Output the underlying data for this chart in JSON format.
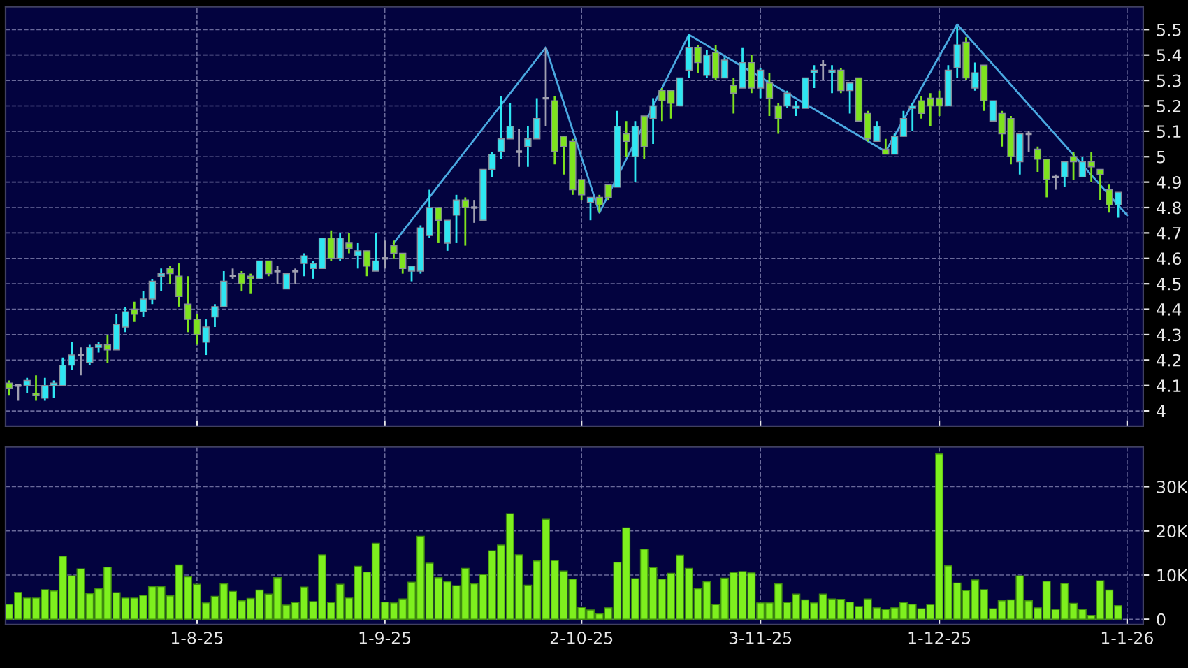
{
  "chart_data": [
    {
      "type": "candlestick",
      "colors": [
        "#7ee31e",
        "#a0a0b0",
        "#2ee6f2",
        "#7ee31e",
        "#2ee6f2",
        "#2ee6f2",
        "#2ee6f2",
        "#2ee6f2",
        "#a0a0b0",
        "#2ee6f2",
        "#2ee6f2",
        "#7ee31e",
        "#2ee6f2",
        "#2ee6f2",
        "#7ee31e",
        "#2ee6f2",
        "#2ee6f2",
        "#2ee6f2",
        "#7ee31e",
        "#7ee31e",
        "#7ee31e",
        "#7ee31e",
        "#2ee6f2",
        "#2ee6f2",
        "#2ee6f2",
        "#a0a0b0",
        "#7ee31e",
        "#7ee31e",
        "#2ee6f2",
        "#7ee31e",
        "#a0a0b0",
        "#2ee6f2",
        "#a0a0b0",
        "#2ee6f2",
        "#2ee6f2",
        "#2ee6f2",
        "#7ee31e",
        "#2ee6f2",
        "#7ee31e",
        "#2ee6f2",
        "#7ee31e",
        "#2ee6f2",
        "#a0a0b0",
        "#7ee31e",
        "#7ee31e",
        "#2ee6f2",
        "#2ee6f2",
        "#2ee6f2",
        "#7ee31e",
        "#2ee6f2",
        "#2ee6f2",
        "#7ee31e",
        "#a0a0b0",
        "#2ee6f2",
        "#2ee6f2",
        "#2ee6f2",
        "#2ee6f2",
        "#a0a0b0",
        "#2ee6f2",
        "#2ee6f2",
        "#a0a0b0",
        "#7ee31e",
        "#7ee31e",
        "#7ee31e",
        "#7ee31e",
        "#2ee6f2",
        "#7ee31e",
        "#7ee31e",
        "#2ee6f2",
        "#7ee31e",
        "#2ee6f2",
        "#7ee31e",
        "#2ee6f2",
        "#7ee31e",
        "#7ee31e",
        "#2ee6f2",
        "#2ee6f2",
        "#7ee31e",
        "#2ee6f2",
        "#7ee31e",
        "#2ee6f2",
        "#7ee31e",
        "#2ee6f2",
        "#7ee31e",
        "#2ee6f2",
        "#7ee31e",
        "#7ee31e",
        "#2ee6f2",
        "#2ee6f2",
        "#2ee6f2",
        "#2ee6f2",
        "#a0a0b0",
        "#2ee6f2",
        "#7ee31e",
        "#2ee6f2",
        "#7ee31e",
        "#7ee31e",
        "#2ee6f2",
        "#7ee31e",
        "#2ee6f2",
        "#2ee6f2",
        "#2ee6f2",
        "#7ee31e",
        "#7ee31e",
        "#7ee31e",
        "#2ee6f2",
        "#2ee6f2",
        "#7ee31e",
        "#2ee6f2",
        "#7ee31e",
        "#2ee6f2",
        "#7ee31e",
        "#7ee31e",
        "#2ee6f2",
        "#a0a0b0",
        "#7ee31e",
        "#7ee31e",
        "#a0a0b0",
        "#2ee6f2",
        "#7ee31e",
        "#2ee6f2",
        "#7ee31e",
        "#7ee31e",
        "#7ee31e",
        "#2ee6f2",
        null
      ],
      "categories": [
        null,
        null,
        null,
        null,
        null,
        null,
        null,
        null,
        null,
        null,
        null,
        null,
        null,
        null,
        null,
        null,
        null,
        null,
        null,
        null,
        null,
        null,
        null,
        null,
        null,
        null,
        null,
        null,
        null,
        null,
        null,
        null,
        null,
        null,
        null,
        null,
        null,
        null,
        null,
        null,
        null,
        null,
        null,
        null,
        null,
        null,
        null,
        null,
        null,
        null,
        null,
        null,
        null,
        null,
        null,
        null,
        null,
        null,
        null,
        null,
        null,
        null,
        null,
        null,
        null,
        null,
        null,
        null,
        null,
        null,
        null,
        null,
        null,
        null,
        null,
        null,
        null,
        null,
        null,
        null,
        null,
        null,
        null,
        null,
        null,
        null,
        null,
        null,
        null,
        null,
        null,
        null,
        null,
        null,
        null,
        null,
        null,
        null,
        null,
        null,
        null,
        null,
        null,
        null,
        null,
        null,
        null,
        null,
        null,
        null,
        null,
        null,
        null,
        null,
        null,
        null,
        null,
        null,
        null,
        null,
        null,
        null,
        null,
        null,
        null,
        null
      ],
      "ohlc": [
        [
          4.11,
          4.12,
          4.06,
          4.09
        ],
        [
          4.1,
          4.1,
          4.04,
          4.1
        ],
        [
          4.1,
          4.13,
          4.07,
          4.12
        ],
        [
          4.07,
          4.14,
          4.04,
          4.06
        ],
        [
          4.05,
          4.13,
          4.04,
          4.1
        ],
        [
          4.1,
          4.12,
          4.05,
          4.11
        ],
        [
          4.1,
          4.21,
          4.1,
          4.18
        ],
        [
          4.18,
          4.27,
          4.16,
          4.22
        ],
        [
          4.22,
          4.25,
          4.14,
          4.22
        ],
        [
          4.19,
          4.26,
          4.18,
          4.25
        ],
        [
          4.25,
          4.27,
          4.23,
          4.26
        ],
        [
          4.26,
          4.3,
          4.19,
          4.24
        ],
        [
          4.24,
          4.38,
          4.24,
          4.34
        ],
        [
          4.33,
          4.41,
          4.31,
          4.39
        ],
        [
          4.4,
          4.43,
          4.35,
          4.38
        ],
        [
          4.39,
          4.47,
          4.37,
          4.44
        ],
        [
          4.44,
          4.52,
          4.42,
          4.51
        ],
        [
          4.53,
          4.56,
          4.47,
          4.54
        ],
        [
          4.56,
          4.57,
          4.5,
          4.54
        ],
        [
          4.53,
          4.58,
          4.41,
          4.45
        ],
        [
          4.42,
          4.53,
          4.31,
          4.36
        ],
        [
          4.36,
          4.38,
          4.26,
          4.3
        ],
        [
          4.27,
          4.36,
          4.22,
          4.33
        ],
        [
          4.37,
          4.42,
          4.33,
          4.41
        ],
        [
          4.41,
          4.55,
          4.41,
          4.51
        ],
        [
          4.53,
          4.56,
          4.52,
          4.53
        ],
        [
          4.54,
          4.55,
          4.47,
          4.5
        ],
        [
          4.53,
          4.54,
          4.46,
          4.52
        ],
        [
          4.52,
          4.59,
          4.52,
          4.59
        ],
        [
          4.59,
          4.59,
          4.53,
          4.54
        ],
        [
          4.55,
          4.57,
          4.5,
          4.55
        ],
        [
          4.48,
          4.54,
          4.48,
          4.54
        ],
        [
          4.55,
          4.56,
          4.5,
          4.55
        ],
        [
          4.58,
          4.62,
          4.53,
          4.61
        ],
        [
          4.56,
          4.59,
          4.52,
          4.58
        ],
        [
          4.56,
          4.68,
          4.56,
          4.68
        ],
        [
          4.68,
          4.71,
          4.59,
          4.6
        ],
        [
          4.6,
          4.7,
          4.59,
          4.68
        ],
        [
          4.66,
          4.7,
          4.62,
          4.64
        ],
        [
          4.61,
          4.66,
          4.56,
          4.63
        ],
        [
          4.63,
          4.63,
          4.53,
          4.57
        ],
        [
          4.55,
          4.7,
          4.55,
          4.59
        ],
        [
          4.6,
          4.67,
          4.56,
          4.6
        ],
        [
          4.65,
          4.67,
          4.6,
          4.62
        ],
        [
          4.62,
          4.62,
          4.54,
          4.56
        ],
        [
          4.55,
          4.57,
          4.51,
          4.57
        ],
        [
          4.55,
          4.73,
          4.54,
          4.72
        ],
        [
          4.69,
          4.87,
          4.68,
          4.8
        ],
        [
          4.8,
          4.8,
          4.66,
          4.75
        ],
        [
          4.66,
          4.75,
          4.63,
          4.75
        ],
        [
          4.77,
          4.85,
          4.66,
          4.83
        ],
        [
          4.83,
          4.84,
          4.65,
          4.8
        ],
        [
          4.8,
          4.83,
          4.74,
          4.8
        ],
        [
          4.75,
          4.95,
          4.75,
          4.95
        ],
        [
          4.95,
          5.02,
          4.92,
          5.01
        ],
        [
          5.02,
          5.24,
          4.99,
          5.07
        ],
        [
          5.07,
          5.21,
          5.07,
          5.12
        ],
        [
          5.02,
          5.11,
          4.96,
          5.02
        ],
        [
          5.04,
          5.12,
          4.96,
          5.07
        ],
        [
          5.07,
          5.23,
          5.07,
          5.15
        ],
        [
          5.23,
          5.43,
          5.12,
          5.23
        ],
        [
          5.22,
          5.24,
          4.97,
          5.02
        ],
        [
          5.08,
          5.08,
          4.93,
          5.04
        ],
        [
          5.06,
          5.07,
          4.85,
          4.87
        ],
        [
          4.91,
          4.91,
          4.83,
          4.85
        ],
        [
          4.82,
          4.84,
          4.75,
          4.84
        ],
        [
          4.84,
          4.85,
          4.78,
          4.81
        ],
        [
          4.89,
          4.89,
          4.83,
          4.84
        ],
        [
          4.88,
          5.18,
          4.88,
          5.12
        ],
        [
          5.09,
          5.14,
          5.0,
          5.06
        ],
        [
          5.0,
          5.14,
          4.9,
          5.12
        ],
        [
          5.16,
          5.16,
          4.99,
          5.04
        ],
        [
          5.15,
          5.23,
          5.05,
          5.2
        ],
        [
          5.26,
          5.27,
          5.14,
          5.22
        ],
        [
          5.26,
          5.26,
          5.15,
          5.21
        ],
        [
          5.2,
          5.31,
          5.2,
          5.31
        ],
        [
          5.34,
          5.48,
          5.31,
          5.43
        ],
        [
          5.43,
          5.44,
          5.33,
          5.37
        ],
        [
          5.32,
          5.42,
          5.31,
          5.4
        ],
        [
          5.41,
          5.44,
          5.3,
          5.31
        ],
        [
          5.31,
          5.39,
          5.31,
          5.38
        ],
        [
          5.28,
          5.31,
          5.17,
          5.25
        ],
        [
          5.27,
          5.43,
          5.27,
          5.37
        ],
        [
          5.37,
          5.4,
          5.25,
          5.27
        ],
        [
          5.27,
          5.35,
          5.23,
          5.34
        ],
        [
          5.29,
          5.33,
          5.16,
          5.23
        ],
        [
          5.2,
          5.21,
          5.09,
          5.15
        ],
        [
          5.2,
          5.26,
          5.19,
          5.25
        ],
        [
          5.19,
          5.22,
          5.16,
          5.2
        ],
        [
          5.19,
          5.31,
          5.19,
          5.31
        ],
        [
          5.33,
          5.36,
          5.27,
          5.34
        ],
        [
          5.36,
          5.38,
          5.3,
          5.36
        ],
        [
          5.33,
          5.36,
          5.25,
          5.34
        ],
        [
          5.34,
          5.35,
          5.25,
          5.26
        ],
        [
          5.26,
          5.29,
          5.17,
          5.29
        ],
        [
          5.31,
          5.31,
          5.14,
          5.14
        ],
        [
          5.17,
          5.18,
          5.06,
          5.07
        ],
        [
          5.06,
          5.14,
          5.06,
          5.12
        ],
        [
          5.03,
          5.07,
          5.01,
          5.01
        ],
        [
          5.01,
          5.09,
          5.01,
          5.08
        ],
        [
          5.08,
          5.18,
          5.08,
          5.15
        ],
        [
          5.19,
          5.21,
          5.1,
          5.2
        ],
        [
          5.22,
          5.24,
          5.15,
          5.17
        ],
        [
          5.23,
          5.25,
          5.12,
          5.2
        ],
        [
          5.23,
          5.26,
          5.16,
          5.2
        ],
        [
          5.2,
          5.36,
          5.2,
          5.34
        ],
        [
          5.35,
          5.51,
          5.31,
          5.44
        ],
        [
          5.45,
          5.47,
          5.3,
          5.31
        ],
        [
          5.27,
          5.37,
          5.26,
          5.33
        ],
        [
          5.36,
          5.36,
          5.18,
          5.22
        ],
        [
          5.14,
          5.22,
          5.14,
          5.22
        ],
        [
          5.17,
          5.18,
          5.04,
          5.09
        ],
        [
          5.15,
          5.16,
          4.97,
          5.0
        ],
        [
          4.98,
          5.09,
          4.93,
          5.09
        ],
        [
          5.09,
          5.1,
          5.02,
          5.09
        ],
        [
          5.03,
          5.04,
          4.94,
          4.99
        ],
        [
          4.99,
          4.99,
          4.84,
          4.91
        ],
        [
          4.92,
          4.93,
          4.87,
          4.92
        ],
        [
          4.92,
          4.98,
          4.88,
          4.98
        ],
        [
          5.0,
          5.02,
          4.91,
          4.98
        ],
        [
          4.92,
          5.0,
          4.92,
          4.98
        ],
        [
          4.98,
          5.02,
          4.9,
          4.96
        ],
        [
          4.95,
          4.95,
          4.83,
          4.93
        ],
        [
          4.87,
          4.89,
          4.78,
          4.81
        ],
        [
          4.81,
          4.86,
          4.76,
          4.86
        ],
        null
      ],
      "series": [
        {
          "type": "line",
          "color": "#4aa8e0",
          "values": [
            null,
            null,
            null,
            null,
            null,
            null,
            null,
            null,
            null,
            null,
            null,
            null,
            null,
            null,
            null,
            null,
            null,
            null,
            null,
            null,
            null,
            null,
            null,
            null,
            null,
            null,
            null,
            null,
            null,
            null,
            null,
            null,
            null,
            null,
            null,
            null,
            null,
            null,
            null,
            null,
            null,
            null,
            null,
            4.66,
            null,
            null,
            null,
            null,
            null,
            null,
            null,
            null,
            null,
            null,
            null,
            null,
            null,
            null,
            null,
            null,
            5.43,
            null,
            null,
            null,
            null,
            null,
            4.78,
            null,
            null,
            null,
            null,
            null,
            null,
            null,
            null,
            null,
            5.48,
            null,
            null,
            null,
            null,
            null,
            null,
            null,
            null,
            null,
            null,
            null,
            null,
            null,
            null,
            null,
            null,
            null,
            null,
            null,
            null,
            null,
            5.02,
            null,
            null,
            null,
            null,
            null,
            null,
            null,
            5.52,
            null,
            null,
            null,
            null,
            null,
            null,
            null,
            null,
            null,
            null,
            null,
            null,
            null,
            null,
            null,
            null,
            null,
            null,
            4.77
          ]
        }
      ],
      "ylim": [
        3.94,
        5.59
      ],
      "yticks": [
        4,
        4.1,
        4.2,
        4.3,
        4.4,
        4.5,
        4.6,
        4.7,
        4.8,
        4.9,
        5,
        5.1,
        5.2,
        5.3,
        5.4,
        5.5
      ],
      "grid": true,
      "tick_labels": "y"
    },
    {
      "type": "bar",
      "color": "#7ef01e",
      "categories": [
        null,
        null,
        null,
        null,
        null,
        null,
        null,
        null,
        null,
        null,
        null,
        null,
        null,
        null,
        null,
        null,
        null,
        null,
        null,
        null,
        null,
        "1-8-25",
        null,
        null,
        null,
        null,
        null,
        null,
        null,
        null,
        null,
        null,
        null,
        null,
        null,
        null,
        null,
        null,
        null,
        null,
        null,
        null,
        "1-9-25",
        null,
        null,
        null,
        null,
        null,
        null,
        null,
        null,
        null,
        null,
        null,
        null,
        null,
        null,
        null,
        null,
        null,
        null,
        null,
        null,
        null,
        "2-10-25",
        null,
        null,
        null,
        null,
        null,
        null,
        null,
        null,
        null,
        null,
        null,
        null,
        null,
        null,
        null,
        null,
        null,
        null,
        null,
        "3-11-25",
        null,
        null,
        null,
        null,
        null,
        null,
        null,
        null,
        null,
        null,
        null,
        null,
        null,
        null,
        null,
        null,
        null,
        null,
        null,
        "1-12-25",
        null,
        null,
        null,
        null,
        null,
        null,
        null,
        null,
        null,
        null,
        null,
        null,
        null,
        null,
        null,
        null,
        null,
        null,
        null,
        null,
        "1-1-26"
      ],
      "values": [
        3400,
        6100,
        4800,
        4800,
        6700,
        6400,
        14300,
        9800,
        11400,
        5800,
        6900,
        11800,
        6000,
        4800,
        4800,
        5400,
        7400,
        7400,
        5300,
        12300,
        9600,
        7900,
        3700,
        5200,
        8000,
        6300,
        4200,
        4700,
        6600,
        5700,
        9400,
        3200,
        3800,
        7300,
        4000,
        14600,
        3800,
        7900,
        4800,
        12000,
        10700,
        17200,
        3900,
        3700,
        4600,
        8400,
        18800,
        12700,
        9400,
        8500,
        7600,
        11500,
        8000,
        10100,
        15500,
        16800,
        23900,
        14600,
        7700,
        13200,
        22600,
        13300,
        10900,
        9100,
        2700,
        2100,
        1200,
        2600,
        12900,
        20700,
        9200,
        15900,
        11700,
        9100,
        10400,
        14500,
        11500,
        6900,
        8500,
        3300,
        9300,
        10600,
        10800,
        10500,
        3700,
        3700,
        8000,
        3800,
        5700,
        4400,
        3700,
        5700,
        4600,
        4500,
        3900,
        2900,
        4600,
        2600,
        2200,
        2600,
        3800,
        3400,
        2400,
        3300,
        37400,
        12100,
        8200,
        6500,
        8900,
        6700,
        2400,
        4200,
        4400,
        9800,
        4200,
        2600,
        8600,
        2200,
        8100,
        3600,
        2200,
        900,
        8700,
        6600,
        3100,
        null
      ],
      "ylim": [
        -1200,
        39000
      ],
      "yticks": [
        0,
        {
          "value": 10000,
          "label": "10K"
        },
        {
          "value": 20000,
          "label": "20K"
        },
        {
          "value": 30000,
          "label": "30K"
        }
      ],
      "grid": true
    }
  ]
}
